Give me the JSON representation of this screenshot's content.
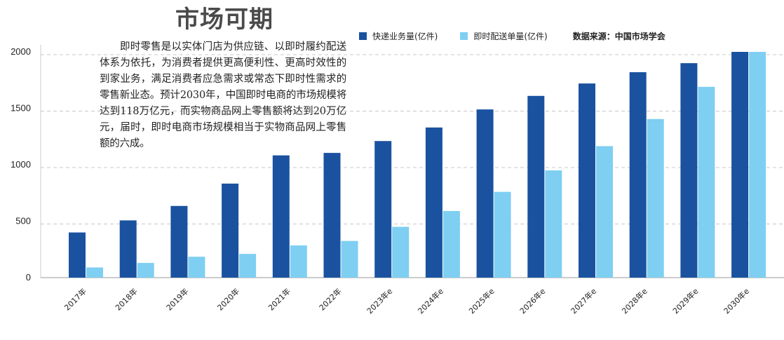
{
  "title": "市场可期",
  "description": "即时零售是以实体门店为供应链、以即时履约配送体系为依托，为消费者提供更高便利性、更高时效性的到家业务，满足消费者应急需求或常态下即时性需求的零售新业态。预计2030年，中国即时电商的市场规模将达到118万亿元，而实物商品网上零售额将达到20万亿元，届时，即时电商市场规模相当于实物商品网上零售额的六成。",
  "source": "数据来源：中国市场学会",
  "colors": {
    "series1": "#1a52a0",
    "series2": "#7ecff2"
  },
  "chart_data": {
    "type": "bar",
    "categories": [
      "2017年",
      "2018年",
      "2019年",
      "2020年",
      "2021年",
      "2022年",
      "2023年e",
      "2024年e",
      "2025年e",
      "2026年e",
      "2027年e",
      "2028年e",
      "2029年e",
      "2030年e"
    ],
    "series": [
      {
        "name": "快递业务量(亿件)",
        "values": [
          400,
          507,
          635,
          833,
          1083,
          1105,
          1210,
          1330,
          1490,
          1610,
          1720,
          1820,
          1900,
          2000
        ]
      },
      {
        "name": "即时配送单量(亿件)",
        "values": [
          90,
          130,
          185,
          210,
          285,
          325,
          450,
          590,
          760,
          950,
          1165,
          1405,
          1690,
          2000
        ]
      }
    ],
    "yticks": [
      0,
      500,
      1000,
      1500,
      2000
    ],
    "ylim": [
      0,
      2000
    ],
    "grid": true,
    "legend_position": "top"
  }
}
